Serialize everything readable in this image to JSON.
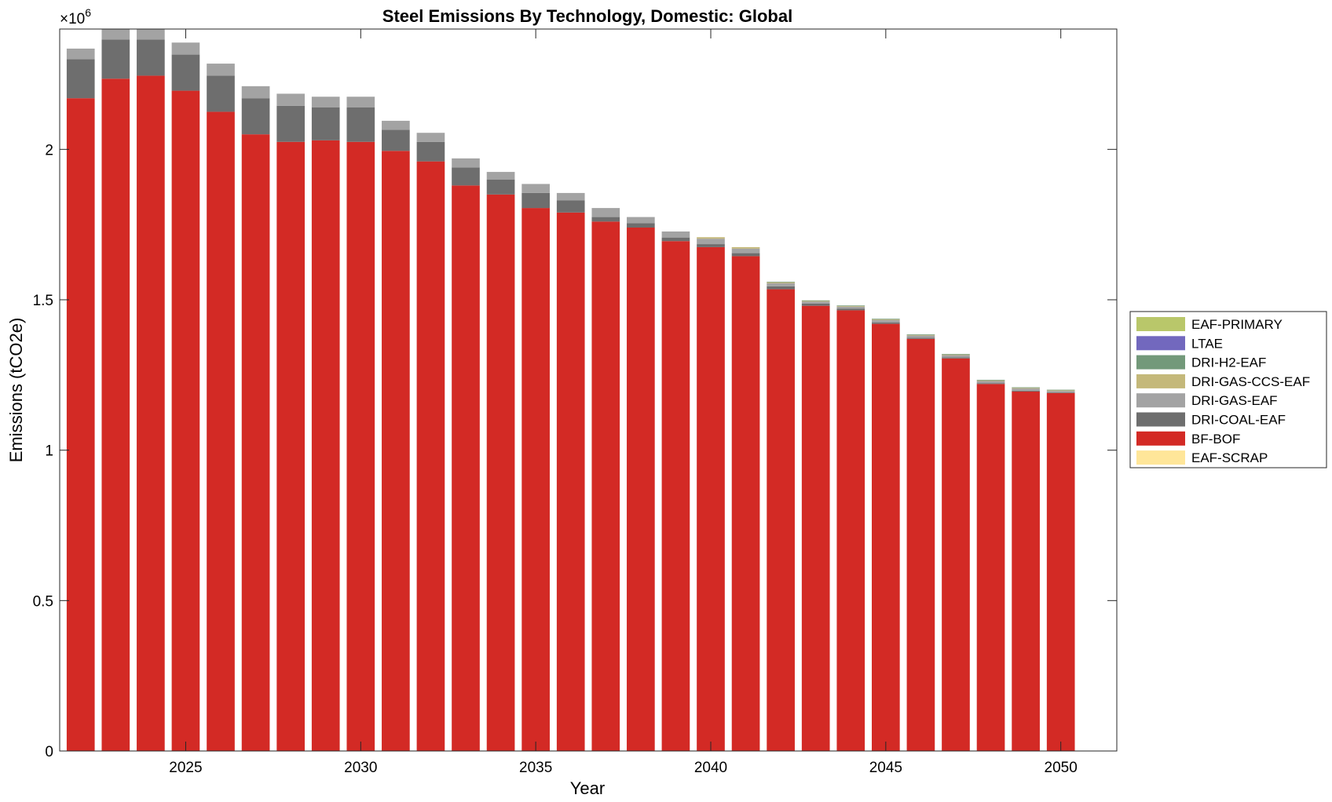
{
  "chart_data": {
    "type": "bar",
    "stacked": true,
    "title": "Steel Emissions By Technology, Domestic: Global",
    "xlabel": "Year",
    "ylabel": "Emissions (tCO2e)",
    "y_exponent_label": "×10",
    "y_exponent_power": "6",
    "ylim": [
      0,
      2400000
    ],
    "xlim": [
      2021.4,
      2051.6
    ],
    "yticks": [
      0,
      500000,
      1000000,
      1500000,
      2000000
    ],
    "ytick_labels": [
      "0",
      "0.5",
      "1",
      "1.5",
      "2"
    ],
    "xticks": [
      2025,
      2030,
      2035,
      2040,
      2045,
      2050
    ],
    "xtick_labels": [
      "2025",
      "2030",
      "2035",
      "2040",
      "2045",
      "2050"
    ],
    "grid": false,
    "legend_position": "right-outside",
    "categories": [
      2022,
      2023,
      2024,
      2025,
      2026,
      2027,
      2028,
      2029,
      2030,
      2031,
      2032,
      2033,
      2034,
      2035,
      2036,
      2037,
      2038,
      2039,
      2040,
      2041,
      2042,
      2043,
      2044,
      2045,
      2046,
      2047,
      2048,
      2049,
      2050
    ],
    "series": [
      {
        "name": "EAF-SCRAP",
        "color": "#ffe699",
        "values": [
          0,
          0,
          0,
          0,
          0,
          0,
          0,
          0,
          0,
          0,
          0,
          0,
          0,
          0,
          0,
          0,
          0,
          0,
          0,
          0,
          0,
          0,
          0,
          0,
          0,
          0,
          0,
          0,
          0
        ]
      },
      {
        "name": "BF-BOF",
        "color": "#d32a25",
        "values": [
          2170000,
          2235000,
          2245000,
          2195000,
          2125000,
          2050000,
          2025000,
          2030000,
          2025000,
          1995000,
          1960000,
          1880000,
          1850000,
          1805000,
          1790000,
          1760000,
          1740000,
          1695000,
          1675000,
          1645000,
          1535000,
          1480000,
          1465000,
          1420000,
          1370000,
          1305000,
          1220000,
          1195000,
          1190000
        ]
      },
      {
        "name": "DRI-COAL-EAF",
        "color": "#6e6e6e",
        "values": [
          130000,
          130000,
          120000,
          120000,
          120000,
          120000,
          120000,
          110000,
          115000,
          70000,
          65000,
          60000,
          50000,
          50000,
          40000,
          15000,
          15000,
          12000,
          10000,
          10000,
          10000,
          7000,
          5000,
          5000,
          4000,
          4000,
          3000,
          3000,
          2000
        ]
      },
      {
        "name": "DRI-GAS-EAF",
        "color": "#a3a3a3",
        "values": [
          35000,
          35000,
          40000,
          40000,
          40000,
          40000,
          40000,
          35000,
          35000,
          30000,
          30000,
          30000,
          25000,
          30000,
          25000,
          30000,
          20000,
          20000,
          18000,
          15000,
          10000,
          7000,
          7000,
          8000,
          7000,
          7000,
          7000,
          7000,
          5000
        ]
      },
      {
        "name": "DRI-GAS-CCS-EAF",
        "color": "#c4b87a",
        "values": [
          0,
          0,
          0,
          0,
          0,
          0,
          0,
          0,
          0,
          0,
          0,
          0,
          0,
          0,
          0,
          0,
          0,
          0,
          5000,
          5000,
          3000,
          2000,
          2000,
          2000,
          2000,
          2000,
          2000,
          2000,
          2000
        ]
      },
      {
        "name": "DRI-H2-EAF",
        "color": "#73997a",
        "values": [
          0,
          0,
          0,
          0,
          0,
          0,
          0,
          0,
          0,
          0,
          0,
          0,
          0,
          0,
          0,
          0,
          0,
          0,
          0,
          0,
          2000,
          2000,
          2000,
          2000,
          2000,
          2000,
          2000,
          2000,
          2000
        ]
      },
      {
        "name": "LTAE",
        "color": "#7268be",
        "values": [
          0,
          0,
          0,
          0,
          0,
          0,
          0,
          0,
          0,
          0,
          0,
          0,
          0,
          0,
          0,
          0,
          0,
          0,
          0,
          0,
          0,
          0,
          0,
          0,
          0,
          0,
          0,
          0,
          0
        ]
      },
      {
        "name": "EAF-PRIMARY",
        "color": "#b9c76a",
        "values": [
          0,
          0,
          0,
          0,
          0,
          0,
          0,
          0,
          0,
          0,
          0,
          0,
          0,
          0,
          0,
          0,
          0,
          0,
          0,
          0,
          0,
          0,
          0,
          0,
          0,
          0,
          0,
          0,
          0
        ]
      }
    ],
    "legend_order": [
      "EAF-PRIMARY",
      "LTAE",
      "DRI-H2-EAF",
      "DRI-GAS-CCS-EAF",
      "DRI-GAS-EAF",
      "DRI-COAL-EAF",
      "BF-BOF",
      "EAF-SCRAP"
    ]
  }
}
